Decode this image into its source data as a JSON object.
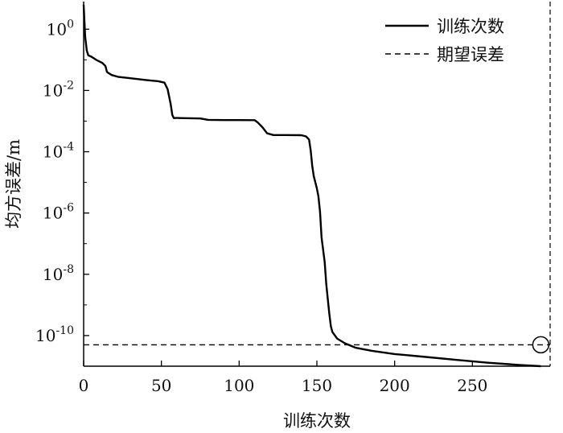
{
  "chart_data": {
    "type": "line",
    "xlabel": "训练次数",
    "ylabel": "均方误差/m",
    "xlim": [
      0,
      300
    ],
    "ylim_log10": [
      -11,
      0.9
    ],
    "yscale": "log",
    "grid": false,
    "legend_position": "top-right",
    "xticks": [
      {
        "value": 0,
        "label": "0"
      },
      {
        "value": 50,
        "label": "50"
      },
      {
        "value": 100,
        "label": "100"
      },
      {
        "value": 150,
        "label": "150"
      },
      {
        "value": 200,
        "label": "200"
      },
      {
        "value": 250,
        "label": "250"
      }
    ],
    "yticks": [
      {
        "exp": 0,
        "base": "10",
        "sup": "0"
      },
      {
        "exp": -2,
        "base": "10",
        "sup": "-2"
      },
      {
        "exp": -4,
        "base": "10",
        "sup": "-4"
      },
      {
        "exp": -6,
        "base": "10",
        "sup": "-6"
      },
      {
        "exp": -8,
        "base": "10",
        "sup": "-8"
      },
      {
        "exp": -10,
        "base": "10",
        "sup": "-10"
      }
    ],
    "series": [
      {
        "name": "训练次数",
        "style": "solid",
        "color": "#000000",
        "x": [
          0,
          1,
          2,
          3,
          5,
          8,
          12,
          14,
          15,
          18,
          22,
          30,
          40,
          48,
          52,
          54,
          56,
          57,
          58,
          59,
          60,
          65,
          75,
          80,
          90,
          100,
          110,
          112,
          115,
          118,
          122,
          130,
          140,
          143,
          145,
          146,
          147,
          148,
          150,
          151,
          152,
          153,
          155,
          156,
          157,
          158,
          159,
          160,
          163,
          168,
          175,
          185,
          200,
          220,
          240,
          260,
          280,
          294
        ],
        "y": [
          6.3,
          0.56,
          0.2,
          0.14,
          0.126,
          0.1,
          0.079,
          0.063,
          0.04,
          0.032,
          0.028,
          0.025,
          0.022,
          0.02,
          0.018,
          0.011,
          0.0035,
          0.0016,
          0.00125,
          0.00126,
          0.00126,
          0.00125,
          0.00122,
          0.0011,
          0.00108,
          0.00108,
          0.00107,
          0.0009,
          0.00063,
          0.0004,
          0.00035,
          0.00035,
          0.000346,
          0.000316,
          0.00025,
          0.00011,
          3.5e-05,
          1.6e-05,
          6.3e-06,
          3.5e-06,
          1.1e-06,
          1.6e-07,
          2.5e-08,
          5e-09,
          1.6e-09,
          5e-10,
          2e-10,
          1.3e-10,
          8e-11,
          5.6e-11,
          4e-11,
          3.2e-11,
          2.5e-11,
          2e-11,
          1.6e-11,
          1.3e-11,
          1.1e-11,
          1e-11
        ]
      },
      {
        "name": "期望误差",
        "style": "dashed",
        "color": "#000000",
        "y_const": 5e-11
      }
    ],
    "annotations": [
      {
        "type": "circle",
        "x": 294,
        "y": 5e-11
      }
    ]
  }
}
